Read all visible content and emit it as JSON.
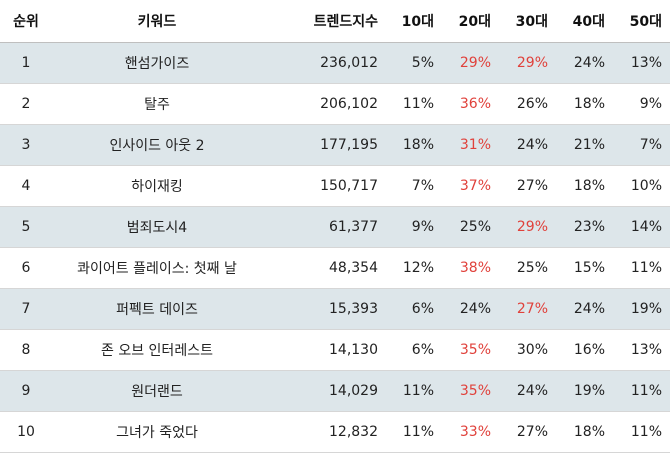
{
  "headers": {
    "rank": "순위",
    "keyword": "키워드",
    "trend": "트렌드지수",
    "age10": "10대",
    "age20": "20대",
    "age30": "30대",
    "age40": "40대",
    "age50": "50대"
  },
  "highlight_color": "#e0413b",
  "stripe_color": "#dde6ea",
  "rows": [
    {
      "rank": "1",
      "keyword": "핸섬가이즈",
      "trend": "236,012",
      "a10": "5%",
      "a20": "29%",
      "a30": "29%",
      "a40": "24%",
      "a50": "13%",
      "hi": [
        "a20",
        "a30"
      ]
    },
    {
      "rank": "2",
      "keyword": "탈주",
      "trend": "206,102",
      "a10": "11%",
      "a20": "36%",
      "a30": "26%",
      "a40": "18%",
      "a50": "9%",
      "hi": [
        "a20"
      ]
    },
    {
      "rank": "3",
      "keyword": "인사이드 아웃 2",
      "trend": "177,195",
      "a10": "18%",
      "a20": "31%",
      "a30": "24%",
      "a40": "21%",
      "a50": "7%",
      "hi": [
        "a20"
      ]
    },
    {
      "rank": "4",
      "keyword": "하이재킹",
      "trend": "150,717",
      "a10": "7%",
      "a20": "37%",
      "a30": "27%",
      "a40": "18%",
      "a50": "10%",
      "hi": [
        "a20"
      ]
    },
    {
      "rank": "5",
      "keyword": "범죄도시4",
      "trend": "61,377",
      "a10": "9%",
      "a20": "25%",
      "a30": "29%",
      "a40": "23%",
      "a50": "14%",
      "hi": [
        "a30"
      ]
    },
    {
      "rank": "6",
      "keyword": "콰이어트 플레이스: 첫째 날",
      "trend": "48,354",
      "a10": "12%",
      "a20": "38%",
      "a30": "25%",
      "a40": "15%",
      "a50": "11%",
      "hi": [
        "a20"
      ]
    },
    {
      "rank": "7",
      "keyword": "퍼펙트 데이즈",
      "trend": "15,393",
      "a10": "6%",
      "a20": "24%",
      "a30": "27%",
      "a40": "24%",
      "a50": "19%",
      "hi": [
        "a30"
      ]
    },
    {
      "rank": "8",
      "keyword": "존 오브 인터레스트",
      "trend": "14,130",
      "a10": "6%",
      "a20": "35%",
      "a30": "30%",
      "a40": "16%",
      "a50": "13%",
      "hi": [
        "a20"
      ]
    },
    {
      "rank": "9",
      "keyword": "원더랜드",
      "trend": "14,029",
      "a10": "11%",
      "a20": "35%",
      "a30": "24%",
      "a40": "19%",
      "a50": "11%",
      "hi": [
        "a20"
      ]
    },
    {
      "rank": "10",
      "keyword": "그녀가 죽었다",
      "trend": "12,832",
      "a10": "11%",
      "a20": "33%",
      "a30": "27%",
      "a40": "18%",
      "a50": "11%",
      "hi": [
        "a20"
      ]
    }
  ]
}
